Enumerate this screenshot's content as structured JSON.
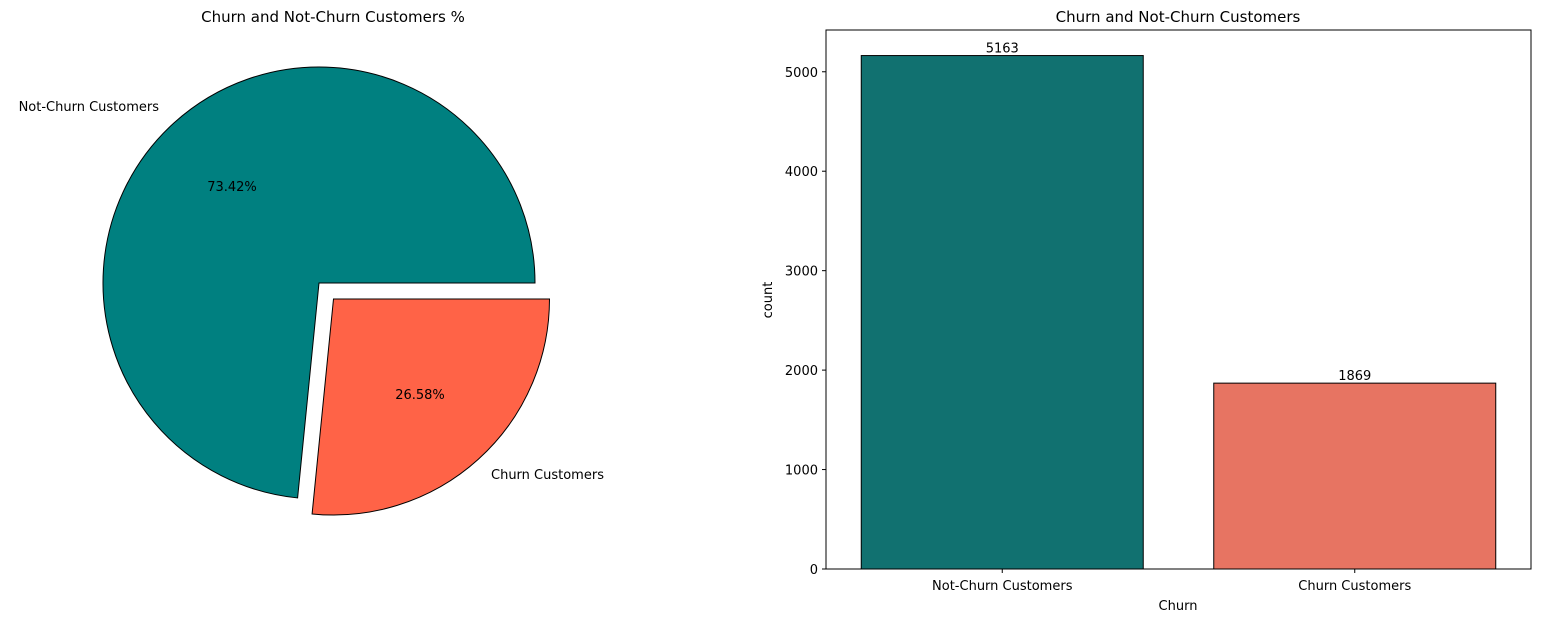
{
  "chart_data": [
    {
      "type": "pie",
      "title": "Churn and Not-Churn Customers %",
      "labels": [
        "Not-Churn Customers",
        "Churn Customers"
      ],
      "values": [
        73.42,
        26.58
      ],
      "pct_labels": [
        "73.42%",
        "26.58%"
      ],
      "colors": [
        "#008080",
        "#ff6347"
      ],
      "explode": [
        0,
        0.1
      ]
    },
    {
      "type": "bar",
      "title": "Churn and Not-Churn Customers",
      "categories": [
        "Not-Churn Customers",
        "Churn Customers"
      ],
      "values": [
        5163,
        1869
      ],
      "value_labels": [
        "5163",
        "1869"
      ],
      "colors": [
        "#117170",
        "#e77462"
      ],
      "xlabel": "Churn",
      "ylabel": "count",
      "ylim": [
        0,
        5420
      ],
      "yticks": [
        0,
        1000,
        2000,
        3000,
        4000,
        5000
      ],
      "ytick_labels": [
        "0",
        "1000",
        "2000",
        "3000",
        "4000",
        "5000"
      ]
    }
  ]
}
